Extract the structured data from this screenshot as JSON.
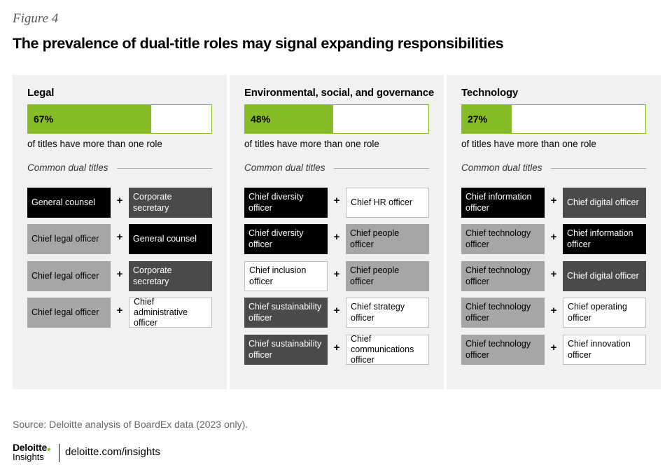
{
  "figure_label": "Figure 4",
  "title": "The prevalence of dual-title roles may signal expanding responsibilities",
  "chart_data": {
    "type": "bar",
    "orientation": "horizontal",
    "title": "The prevalence of dual-title roles may signal expanding responsibilities",
    "value_unit": "percent",
    "xlim": [
      0,
      100
    ],
    "categories": [
      "Legal",
      "Environmental, social, and governance",
      "Technology"
    ],
    "values": [
      67,
      48,
      27
    ],
    "value_labels": [
      "67%",
      "48%",
      "27%"
    ],
    "caption": "of titles have more than one role",
    "colors": {
      "fill": "#86bc25",
      "track": "#ffffff"
    }
  },
  "panels": [
    {
      "title": "Legal",
      "percent": 67,
      "percent_label": "67%",
      "caption": "of titles have more than one role",
      "dual_heading": "Common dual titles",
      "pairs": [
        {
          "left": {
            "text": "General counsel",
            "style": "black"
          },
          "plus": "+",
          "right": {
            "text": "Corporate secretary",
            "style": "dark"
          }
        },
        {
          "left": {
            "text": "Chief legal officer",
            "style": "gray"
          },
          "plus": "+",
          "right": {
            "text": "General counsel",
            "style": "black"
          }
        },
        {
          "left": {
            "text": "Chief legal officer",
            "style": "gray"
          },
          "plus": "+",
          "right": {
            "text": "Corporate secretary",
            "style": "dark"
          }
        },
        {
          "left": {
            "text": "Chief legal officer",
            "style": "gray"
          },
          "plus": "+",
          "right": {
            "text": "Chief administrative officer",
            "style": "white"
          }
        }
      ]
    },
    {
      "title": "Environmental, social, and governance",
      "percent": 48,
      "percent_label": "48%",
      "caption": "of titles have more than one role",
      "dual_heading": "Common dual titles",
      "pairs": [
        {
          "left": {
            "text": "Chief diversity officer",
            "style": "black"
          },
          "plus": "+",
          "right": {
            "text": "Chief HR officer",
            "style": "white"
          }
        },
        {
          "left": {
            "text": "Chief diversity officer",
            "style": "black"
          },
          "plus": "+",
          "right": {
            "text": "Chief people officer",
            "style": "gray"
          }
        },
        {
          "left": {
            "text": "Chief inclusion officer",
            "style": "white"
          },
          "plus": "+",
          "right": {
            "text": "Chief people officer",
            "style": "gray"
          }
        },
        {
          "left": {
            "text": "Chief sustainability officer",
            "style": "dark"
          },
          "plus": "+",
          "right": {
            "text": "Chief strategy officer",
            "style": "white"
          }
        },
        {
          "left": {
            "text": "Chief sustainability officer",
            "style": "dark"
          },
          "plus": "+",
          "right": {
            "text": "Chief communications officer",
            "style": "white"
          }
        }
      ]
    },
    {
      "title": "Technology",
      "percent": 27,
      "percent_label": "27%",
      "caption": "of titles have more than one role",
      "dual_heading": "Common dual titles",
      "pairs": [
        {
          "left": {
            "text": "Chief information officer",
            "style": "black"
          },
          "plus": "+",
          "right": {
            "text": "Chief digital officer",
            "style": "dark"
          }
        },
        {
          "left": {
            "text": "Chief technology officer",
            "style": "gray"
          },
          "plus": "+",
          "right": {
            "text": "Chief information officer",
            "style": "black"
          }
        },
        {
          "left": {
            "text": "Chief technology officer",
            "style": "gray"
          },
          "plus": "+",
          "right": {
            "text": "Chief digital officer",
            "style": "dark"
          }
        },
        {
          "left": {
            "text": "Chief technology officer",
            "style": "gray"
          },
          "plus": "+",
          "right": {
            "text": "Chief operating officer",
            "style": "white"
          }
        },
        {
          "left": {
            "text": "Chief technology officer",
            "style": "gray"
          },
          "plus": "+",
          "right": {
            "text": "Chief innovation officer",
            "style": "white"
          }
        }
      ]
    }
  ],
  "source": "Source: Deloitte analysis of BoardEx data (2023 only).",
  "logo": {
    "name": "Deloitte",
    "sub": "Insights",
    "dot_color": "#86bc25"
  },
  "footer_link": "deloitte.com/insights"
}
